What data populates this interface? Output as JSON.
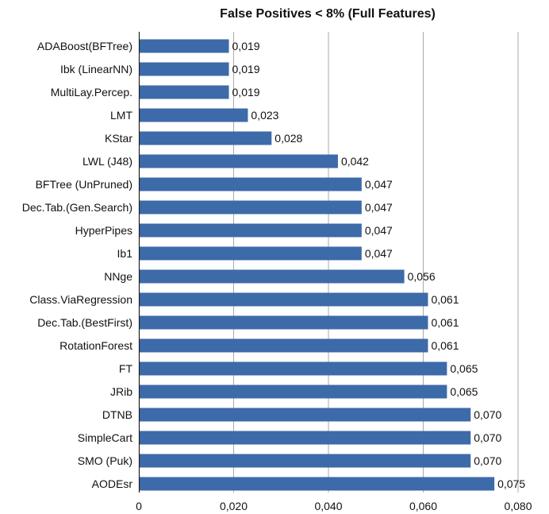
{
  "chart_data": {
    "type": "bar",
    "orientation": "horizontal",
    "title": "False Positives < 8% (Full Features)",
    "xlabel": "",
    "ylabel": "",
    "xlim": [
      0,
      0.08
    ],
    "x_ticks": [
      0,
      0.02,
      0.04,
      0.06,
      0.08
    ],
    "x_tick_labels": [
      "0",
      "0,020",
      "0,040",
      "0,060",
      "0,080"
    ],
    "grid": "vertical",
    "legend": "none",
    "bar_color": "#3d6aa8",
    "categories": [
      "ADABoost(BFTree)",
      "Ibk (LinearNN)",
      "MultiLay.Percep.",
      "LMT",
      "KStar",
      "LWL (J48)",
      "BFTree (UnPruned)",
      "Dec.Tab.(Gen.Search)",
      "HyperPipes",
      "Ib1",
      "NNge",
      "Class.ViaRegression",
      "Dec.Tab.(BestFirst)",
      "RotationForest",
      "FT",
      "JRib",
      "DTNB",
      "SimpleCart",
      "SMO (Puk)",
      "AODEsr"
    ],
    "values": [
      0.019,
      0.019,
      0.019,
      0.023,
      0.028,
      0.042,
      0.047,
      0.047,
      0.047,
      0.047,
      0.056,
      0.061,
      0.061,
      0.061,
      0.065,
      0.065,
      0.07,
      0.07,
      0.07,
      0.075
    ],
    "value_labels": [
      "0,019",
      "0,019",
      "0,019",
      "0,023",
      "0,028",
      "0,042",
      "0,047",
      "0,047",
      "0,047",
      "0,047",
      "0,056",
      "0,061",
      "0,061",
      "0,061",
      "0,065",
      "0,065",
      "0,070",
      "0,070",
      "0,070",
      "0,075"
    ]
  }
}
